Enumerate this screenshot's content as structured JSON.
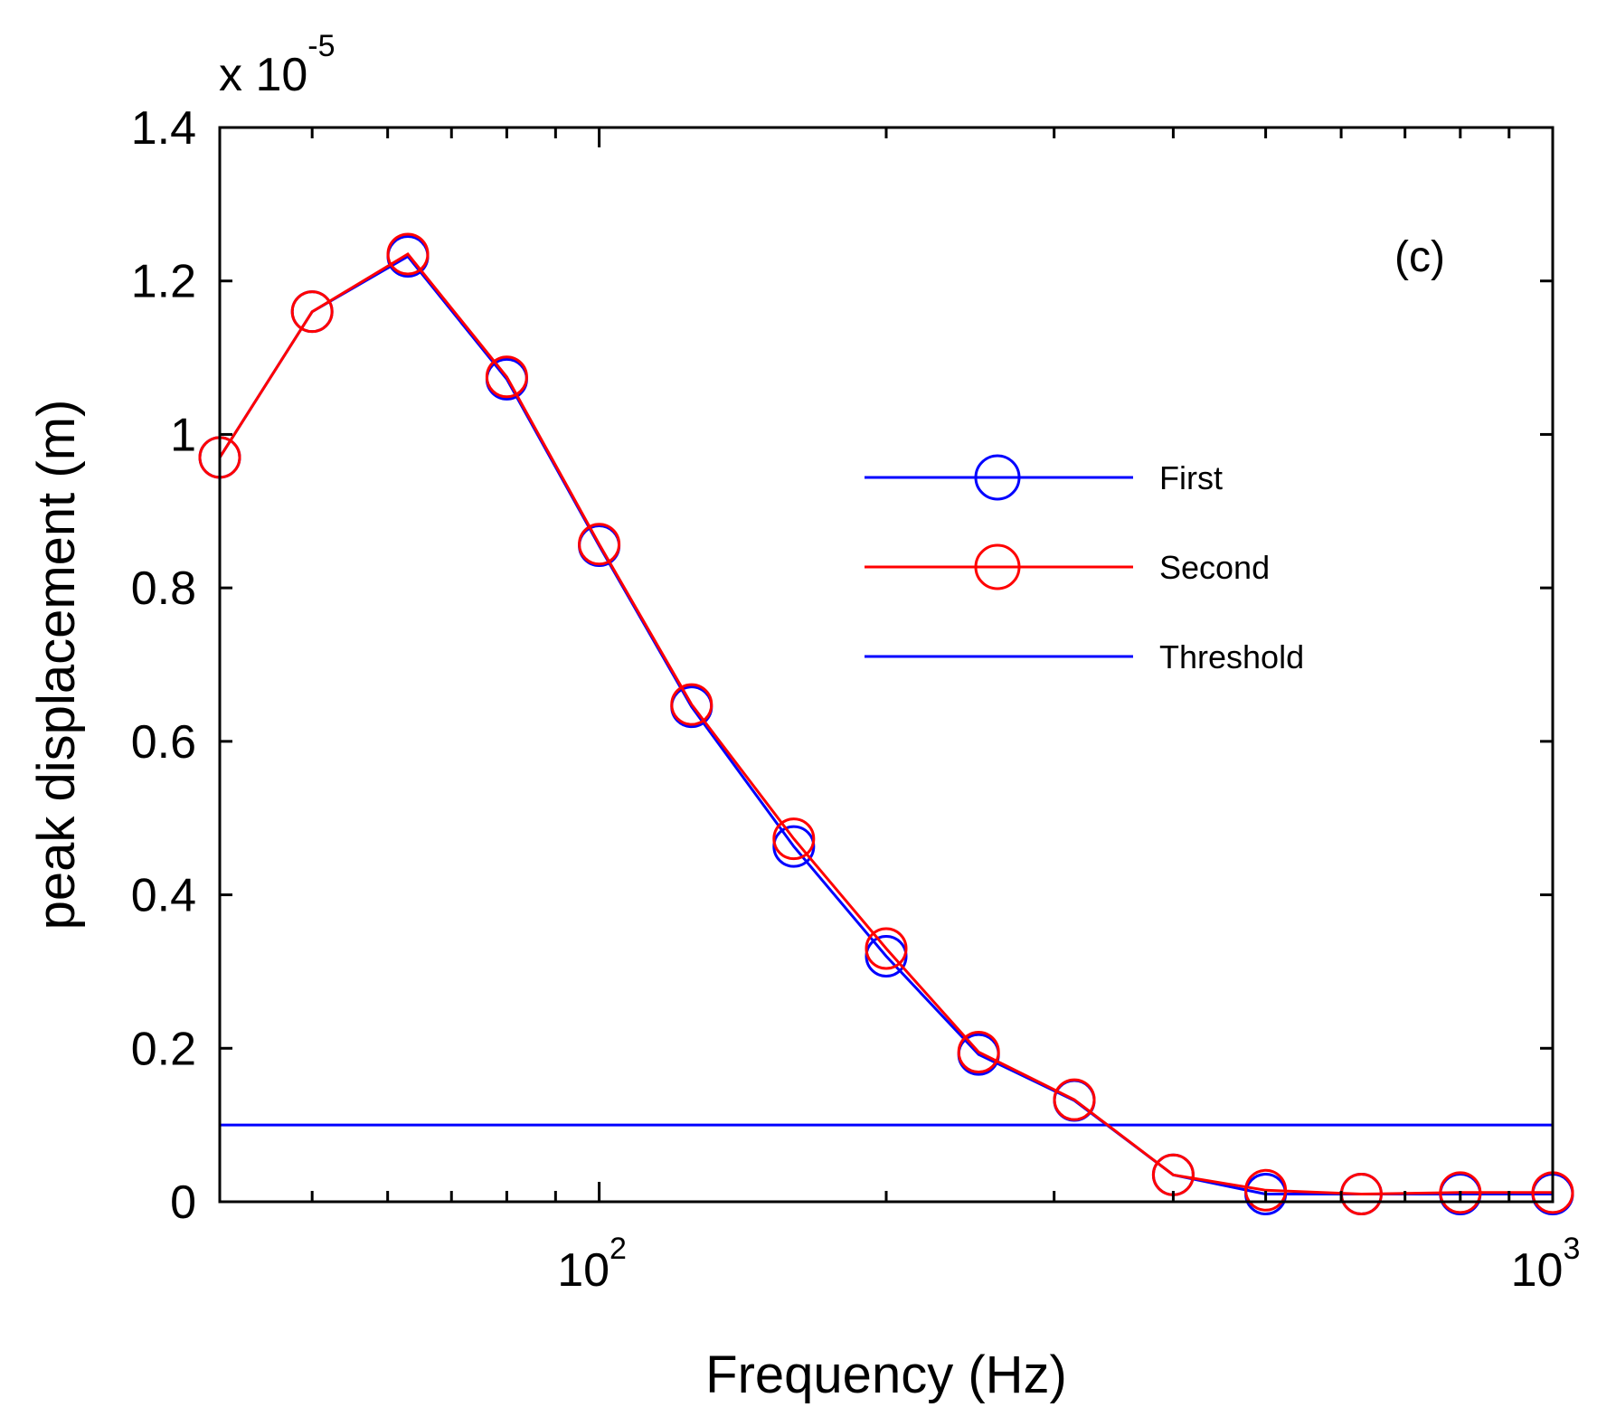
{
  "chart_data": {
    "type": "line",
    "panel_label": "(c)",
    "xlabel": "Frequency (Hz)",
    "ylabel": "peak displacement (m)",
    "x_scale": "log",
    "xlim": [
      40,
      1000
    ],
    "ylim": [
      0,
      1.4
    ],
    "y_multiplier": {
      "base": "x 10",
      "exponent": "-5"
    },
    "x_major_ticks": [
      {
        "value": 100,
        "base": "10",
        "exponent": "2"
      },
      {
        "value": 1000,
        "base": "10",
        "exponent": "3"
      }
    ],
    "y_ticks": [
      {
        "value": 0,
        "label": "0"
      },
      {
        "value": 0.2,
        "label": "0.2"
      },
      {
        "value": 0.4,
        "label": "0.4"
      },
      {
        "value": 0.6,
        "label": "0.6"
      },
      {
        "value": 0.8,
        "label": "0.8"
      },
      {
        "value": 1.0,
        "label": "1"
      },
      {
        "value": 1.2,
        "label": "1.2"
      },
      {
        "value": 1.4,
        "label": "1.4"
      }
    ],
    "x": [
      40,
      50,
      63,
      80,
      100,
      125,
      160,
      200,
      250,
      315,
      400,
      500,
      630,
      800,
      1000
    ],
    "series": [
      {
        "name": "First",
        "color": "#0000ff",
        "marker": "circle",
        "values": [
          0.97,
          1.16,
          1.232,
          1.072,
          0.855,
          0.645,
          0.463,
          0.32,
          0.192,
          0.132,
          0.035,
          0.01,
          0.01,
          0.01,
          0.01
        ]
      },
      {
        "name": "Second",
        "color": "#ff0000",
        "marker": "circle",
        "values": [
          0.97,
          1.16,
          1.235,
          1.075,
          0.857,
          0.648,
          0.473,
          0.33,
          0.195,
          0.133,
          0.035,
          0.015,
          0.01,
          0.012,
          0.012
        ]
      },
      {
        "name": "Threshold",
        "color": "#0000ff",
        "marker": "none",
        "constant": 0.1
      }
    ],
    "legend_position": "right-middle"
  }
}
